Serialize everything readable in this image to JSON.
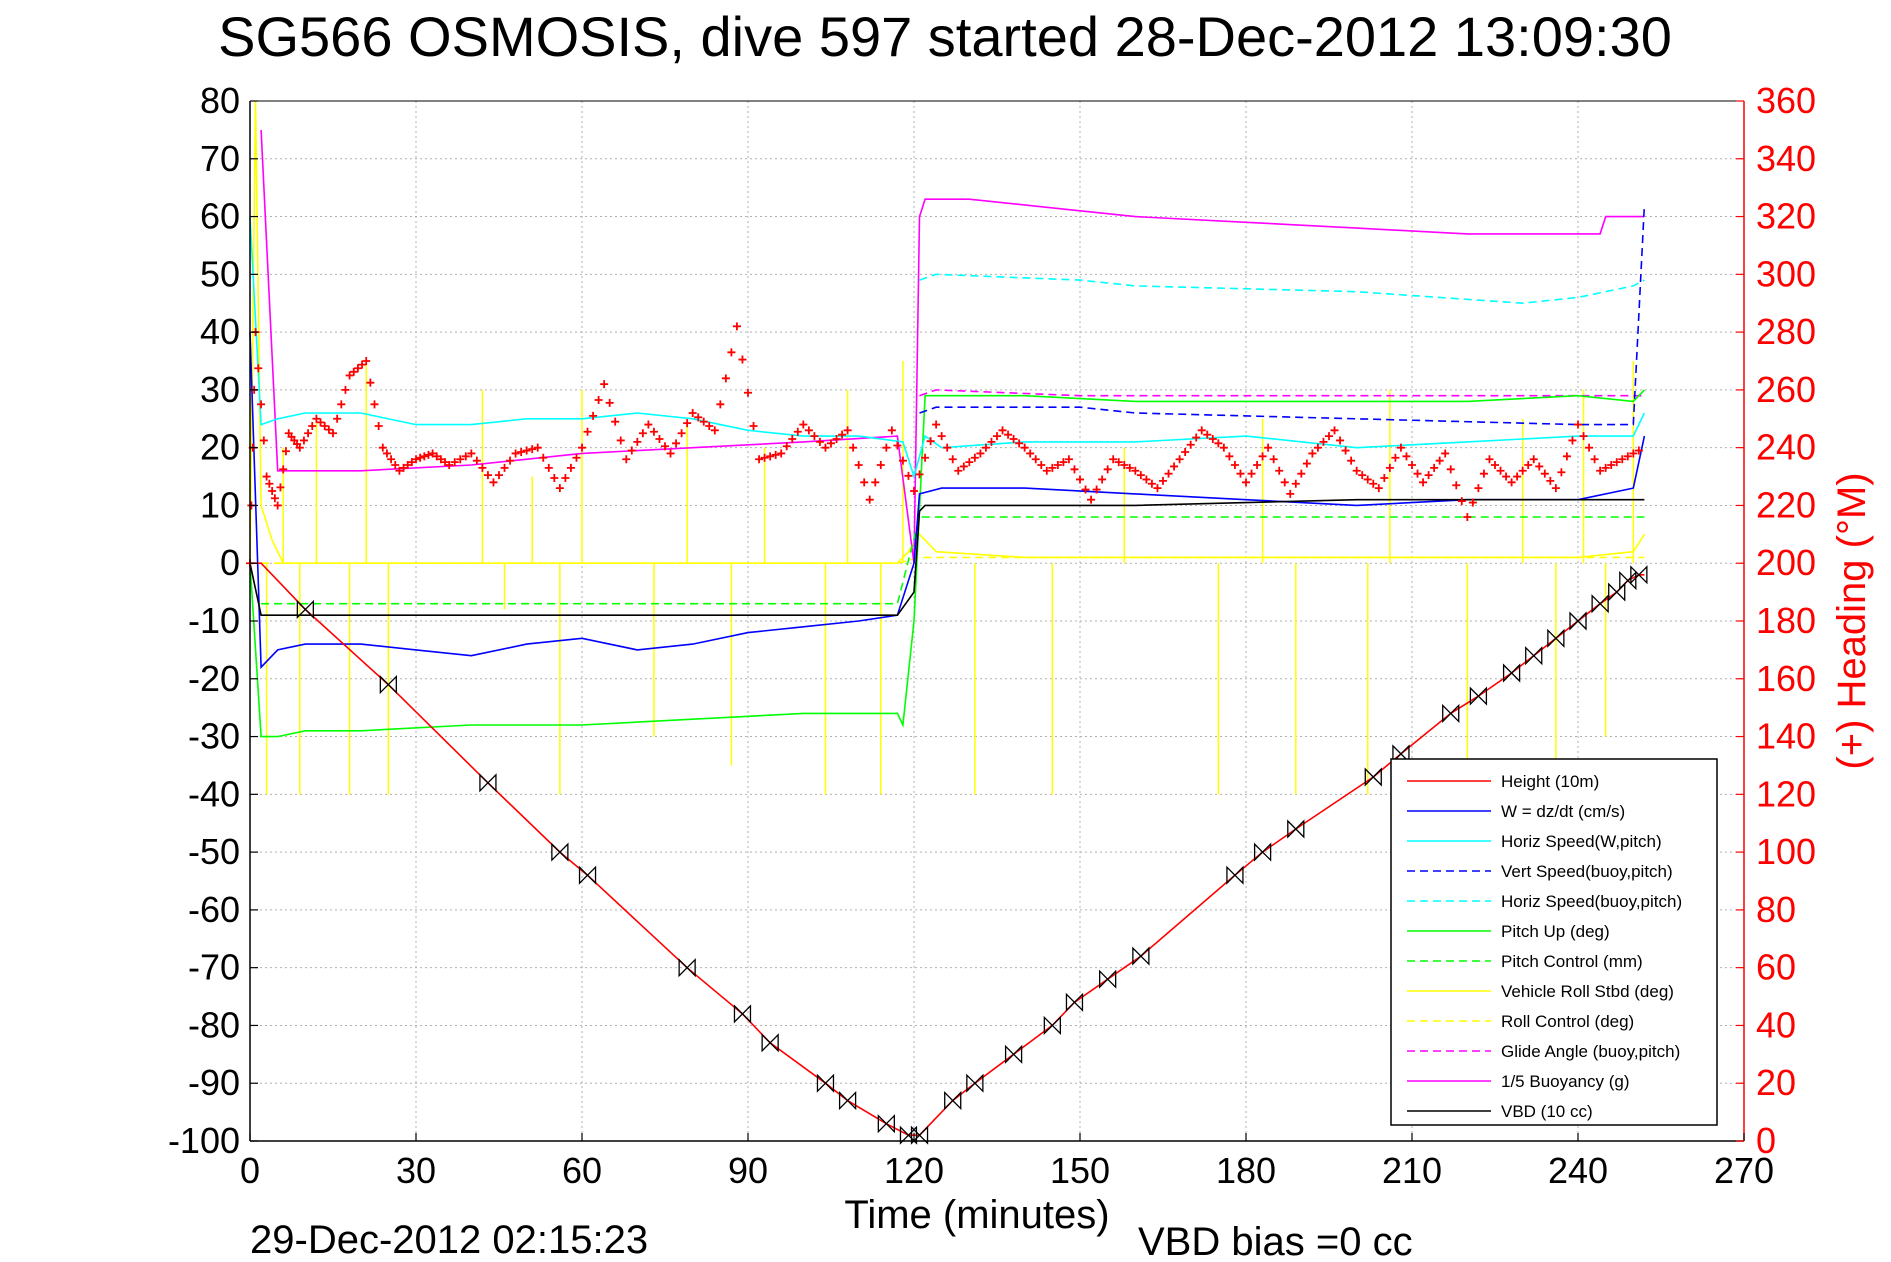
{
  "chart_data": {
    "type": "line",
    "title": "SG566 OSMOSIS, dive 597 started 28-Dec-2012 13:09:30",
    "xlabel": "Time (minutes)",
    "ylabel_right": "(+) Heading (°M)",
    "footer_left": "29-Dec-2012 02:15:23",
    "footer_right": "VBD bias =0 cc",
    "xlim": [
      0,
      270
    ],
    "ylim": [
      -100,
      80
    ],
    "ylim_right": [
      0,
      360
    ],
    "x_ticks": [
      0,
      30,
      60,
      90,
      120,
      150,
      180,
      210,
      240,
      270
    ],
    "y_ticks": [
      -100,
      -90,
      -80,
      -70,
      -60,
      -50,
      -40,
      -30,
      -20,
      -10,
      0,
      10,
      20,
      30,
      40,
      50,
      60,
      70,
      80
    ],
    "y_ticks_right": [
      0,
      20,
      40,
      60,
      80,
      100,
      120,
      140,
      160,
      180,
      200,
      220,
      240,
      260,
      280,
      300,
      320,
      340,
      360
    ],
    "grid": true,
    "legend_position": "bottom-right",
    "colors": {
      "height": "#ff0000",
      "w": "#0000ff",
      "horiz_speed": "#00ffff",
      "pitch": "#00ff00",
      "roll": "#ffff00",
      "buoyancy": "#ff00ff",
      "vbd": "#000000",
      "heading": "#ff0000"
    },
    "legend": [
      {
        "label": "Height (10m)",
        "color": "#ff0000",
        "dash": "solid"
      },
      {
        "label": "W = dz/dt (cm/s)",
        "color": "#0000ff",
        "dash": "solid"
      },
      {
        "label": "Horiz Speed(W,pitch)",
        "color": "#00ffff",
        "dash": "solid"
      },
      {
        "label": "Vert Speed(buoy,pitch)",
        "color": "#0000ff",
        "dash": "dashed"
      },
      {
        "label": "Horiz Speed(buoy,pitch)",
        "color": "#00ffff",
        "dash": "dashed"
      },
      {
        "label": "Pitch Up (deg)",
        "color": "#00ff00",
        "dash": "solid"
      },
      {
        "label": "Pitch Control (mm)",
        "color": "#00ff00",
        "dash": "dashed"
      },
      {
        "label": "Vehicle Roll Stbd (deg)",
        "color": "#ffff00",
        "dash": "solid"
      },
      {
        "label": "Roll Control (deg)",
        "color": "#ffff00",
        "dash": "dashed"
      },
      {
        "label": "Glide Angle (buoy,pitch)",
        "color": "#ff00ff",
        "dash": "dashed"
      },
      {
        "label": "1/5 Buoyancy (g)",
        "color": "#ff00ff",
        "dash": "solid"
      },
      {
        "label": "VBD (10 cc)",
        "color": "#000000",
        "dash": "solid"
      }
    ],
    "series": [
      {
        "key": "height",
        "x": [
          0,
          2,
          10,
          25,
          43,
          56,
          61,
          79,
          89,
          94,
          104,
          108,
          115,
          119,
          121,
          127,
          131,
          138,
          145,
          149,
          155,
          161,
          178,
          183,
          189,
          203,
          208,
          217,
          222,
          228,
          232,
          236,
          240,
          244,
          247,
          249,
          251,
          252
        ],
        "y": [
          0,
          0,
          -8,
          -21,
          -38,
          -50,
          -54,
          -70,
          -78,
          -83,
          -90,
          -93,
          -97,
          -99,
          -99,
          -93,
          -90,
          -85,
          -80,
          -76,
          -72,
          -68,
          -54,
          -50,
          -46,
          -37,
          -33,
          -26,
          -23,
          -19,
          -16,
          -13,
          -10,
          -7,
          -5,
          -3,
          -2,
          -2
        ]
      },
      {
        "key": "w",
        "x": [
          0,
          2,
          5,
          10,
          20,
          30,
          40,
          50,
          60,
          70,
          80,
          90,
          100,
          110,
          117,
          120,
          121,
          125,
          140,
          160,
          180,
          200,
          220,
          240,
          250,
          252
        ],
        "y": [
          40,
          -18,
          -15,
          -14,
          -14,
          -15,
          -16,
          -14,
          -13,
          -15,
          -14,
          -12,
          -11,
          -10,
          -9,
          0,
          12,
          13,
          13,
          12,
          11,
          10,
          11,
          11,
          13,
          22
        ]
      },
      {
        "key": "horiz_speed",
        "x": [
          0,
          2,
          5,
          10,
          20,
          30,
          40,
          50,
          60,
          70,
          80,
          90,
          100,
          110,
          118,
          120,
          122,
          125,
          140,
          160,
          180,
          200,
          220,
          240,
          250,
          252
        ],
        "y": [
          60,
          24,
          25,
          26,
          26,
          24,
          24,
          25,
          25,
          26,
          25,
          23,
          22,
          22,
          21,
          15,
          22,
          20,
          21,
          21,
          22,
          20,
          21,
          22,
          22,
          26
        ]
      },
      {
        "key": "vert_speed_buoy",
        "x": [
          121,
          124,
          150,
          160,
          200,
          240,
          250,
          252
        ],
        "y": [
          26,
          27,
          27,
          26,
          25,
          24,
          24,
          62
        ]
      },
      {
        "key": "horiz_speed_buoy",
        "x": [
          121,
          124,
          150,
          160,
          200,
          230,
          240,
          250,
          252
        ],
        "y": [
          49,
          50,
          49,
          48,
          47,
          45,
          46,
          48,
          49
        ]
      },
      {
        "key": "pitch_up",
        "x": [
          0,
          2,
          5,
          10,
          20,
          40,
          60,
          80,
          100,
          117,
          118,
          120,
          122,
          140,
          160,
          180,
          200,
          220,
          240,
          250,
          252
        ],
        "y": [
          0,
          -30,
          -30,
          -29,
          -29,
          -28,
          -28,
          -27,
          -26,
          -26,
          -28,
          -10,
          29,
          29,
          28,
          28,
          28,
          28,
          29,
          28,
          30
        ]
      },
      {
        "key": "pitch_control",
        "x": [
          2,
          10,
          30,
          60,
          90,
          117,
          121,
          140,
          200,
          240,
          252
        ],
        "y": [
          -7,
          -7,
          -7,
          -7,
          -7,
          -7,
          8,
          8,
          8,
          8,
          8
        ]
      },
      {
        "key": "roll_control",
        "x": [
          2,
          40,
          80,
          117,
          121,
          160,
          200,
          252
        ],
        "y": [
          0,
          0,
          0,
          0,
          1,
          1,
          1,
          1
        ]
      },
      {
        "key": "glide_angle",
        "x": [
          121,
          124,
          150,
          200,
          252
        ],
        "y": [
          29,
          30,
          29,
          29,
          29
        ]
      },
      {
        "key": "buoyancy",
        "x": [
          2,
          5,
          20,
          40,
          60,
          80,
          100,
          117,
          120,
          121,
          122,
          130,
          150,
          160,
          180,
          200,
          220,
          240,
          244,
          245,
          252
        ],
        "y": [
          75,
          16,
          16,
          17,
          19,
          20,
          21,
          22,
          0,
          60,
          63,
          63,
          61,
          60,
          59,
          58,
          57,
          57,
          57,
          60,
          60
        ]
      },
      {
        "key": "vbd",
        "x": [
          0,
          2,
          10,
          30,
          60,
          90,
          117,
          120,
          121,
          122,
          130,
          160,
          200,
          240,
          252
        ],
        "y": [
          0,
          -9,
          -9,
          -9,
          -9,
          -9,
          -9,
          -5,
          9,
          10,
          10,
          10,
          11,
          11,
          11
        ]
      },
      {
        "key": "heading",
        "axis": "right",
        "x": [
          0,
          1,
          3,
          5,
          7,
          9,
          12,
          15,
          18,
          21,
          24,
          27,
          30,
          33,
          36,
          40,
          44,
          48,
          52,
          56,
          60,
          64,
          68,
          72,
          76,
          80,
          84,
          88,
          92,
          96,
          100,
          104,
          108,
          112,
          116,
          120,
          124,
          128,
          132,
          136,
          140,
          144,
          148,
          152,
          156,
          160,
          164,
          168,
          172,
          176,
          180,
          184,
          188,
          192,
          196,
          200,
          204,
          208,
          212,
          216,
          220,
          224,
          228,
          232,
          236,
          240,
          244,
          248,
          252
        ],
        "y": [
          200,
          280,
          230,
          220,
          245,
          240,
          250,
          245,
          265,
          270,
          240,
          232,
          236,
          238,
          234,
          238,
          228,
          238,
          240,
          226,
          240,
          262,
          236,
          248,
          238,
          252,
          246,
          282,
          236,
          238,
          248,
          240,
          246,
          222,
          246,
          225,
          248,
          232,
          238,
          246,
          240,
          232,
          236,
          222,
          236,
          232,
          226,
          236,
          246,
          240,
          228,
          240,
          224,
          238,
          246,
          232,
          226,
          240,
          228,
          238,
          216,
          236,
          228,
          236,
          226,
          248,
          232,
          236,
          240
        ]
      },
      {
        "key": "roll_stbd",
        "x": [
          0,
          1,
          2,
          4,
          6,
          10,
          20,
          30,
          50,
          70,
          90,
          110,
          117,
          119,
          121,
          124,
          140,
          160,
          180,
          200,
          220,
          240,
          250,
          252
        ],
        "y": [
          0,
          80,
          10,
          4,
          0,
          0,
          0,
          0,
          0,
          0,
          0,
          0,
          0,
          2,
          5,
          2,
          1,
          1,
          1,
          1,
          1,
          1,
          2,
          5
        ]
      },
      {
        "key": "roll_spikes",
        "x": [
          3,
          6,
          9,
          12,
          18,
          21,
          25,
          42,
          46,
          51,
          56,
          60,
          73,
          79,
          87,
          93,
          104,
          108,
          114,
          118,
          131,
          145,
          158,
          175,
          183,
          189,
          202,
          206,
          220,
          230,
          236,
          241,
          245,
          250
        ],
        "y": [
          -40,
          20,
          -40,
          25,
          -40,
          35,
          -40,
          30,
          -8,
          15,
          -40,
          30,
          -30,
          25,
          -35,
          20,
          -40,
          30,
          -40,
          35,
          -40,
          -40,
          20,
          -40,
          25,
          -40,
          -40,
          30,
          -35,
          25,
          -40,
          30,
          -30,
          35
        ]
      }
    ]
  }
}
